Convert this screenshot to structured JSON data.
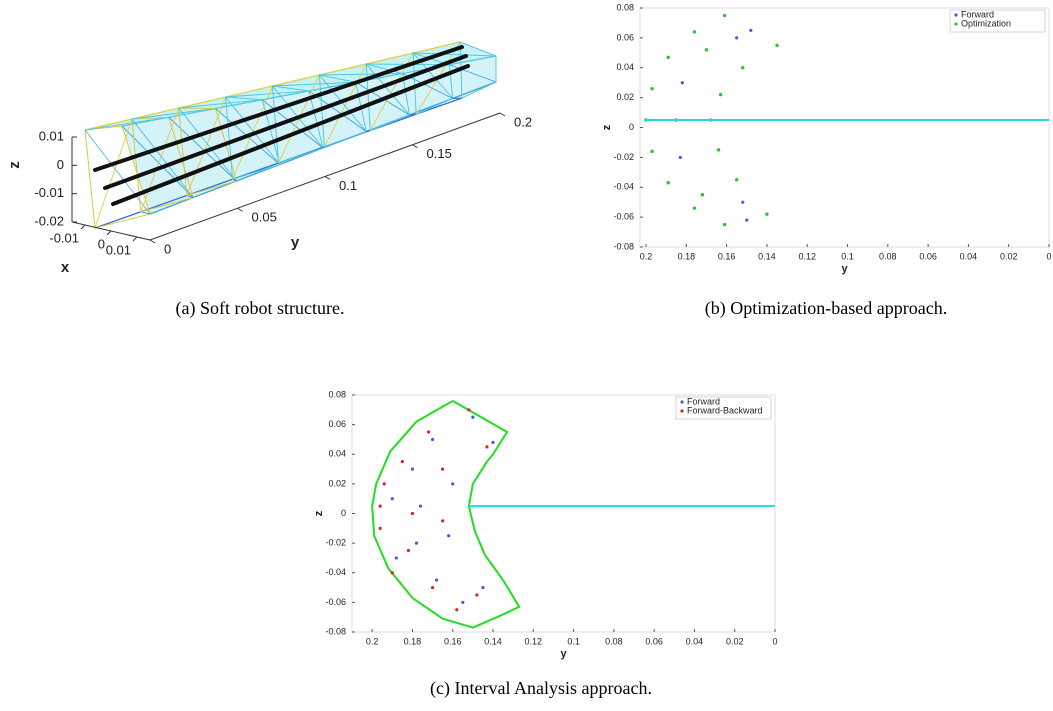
{
  "chart_data": [
    {
      "type": "wireframe3d",
      "caption": "(a) Soft robot structure.",
      "xlabel": "x",
      "ylabel": "y",
      "zlabel": "z",
      "xlim": [
        -0.015,
        0.015
      ],
      "ylim": [
        0,
        0.2
      ],
      "zlim": [
        -0.02,
        0.01
      ],
      "xticks": [
        -0.01,
        0,
        0.01
      ],
      "yticks": [
        0,
        0.05,
        0.1,
        0.15,
        0.2
      ],
      "zticks": [
        -0.02,
        -0.01,
        0,
        0.01
      ]
    },
    {
      "type": "scatter",
      "caption": "(b) Optimization-based approach.",
      "xlabel": "y",
      "ylabel": "z",
      "xlim": [
        0.203,
        0
      ],
      "ylim": [
        -0.08,
        0.08
      ],
      "xticks": [
        0.2,
        0.18,
        0.16,
        0.14,
        0.12,
        0.1,
        0.08,
        0.06,
        0.04,
        0.02,
        0
      ],
      "yticks": [
        0.08,
        0.06,
        0.04,
        0.02,
        0,
        -0.02,
        -0.04,
        -0.06,
        -0.08
      ],
      "legend": "upper right",
      "series": [
        {
          "name": "Forward",
          "color": "#4a5ad8",
          "x": [
            0.161,
            0.176,
            0.189,
            0.197,
            0.2,
            0.197,
            0.189,
            0.176,
            0.161,
            0.135,
            0.152,
            0.163,
            0.168,
            0.164,
            0.155,
            0.14,
            0.15,
            0.148,
            0.185,
            0.182,
            0.17,
            0.183,
            0.172,
            0.155,
            0.152
          ],
          "values": [
            -0.065,
            -0.054,
            -0.037,
            -0.016,
            0.005,
            0.026,
            0.047,
            0.064,
            0.075,
            0.055,
            0.04,
            0.022,
            0.005,
            -0.015,
            -0.035,
            -0.058,
            -0.062,
            0.065,
            0.005,
            0.03,
            0.052,
            -0.02,
            -0.045,
            0.06,
            -0.05
          ]
        },
        {
          "name": "Optimization",
          "color": "#22cc22",
          "x": [
            0.161,
            0.176,
            0.189,
            0.197,
            0.2,
            0.197,
            0.189,
            0.176,
            0.161,
            0.135,
            0.152,
            0.163,
            0.168,
            0.164,
            0.155,
            0.14,
            0.185,
            0.17,
            0.172
          ],
          "values": [
            -0.065,
            -0.054,
            -0.037,
            -0.016,
            0.005,
            0.026,
            0.047,
            0.064,
            0.075,
            0.055,
            0.04,
            0.022,
            0.005,
            -0.015,
            -0.035,
            -0.058,
            0.005,
            0.052,
            -0.045
          ]
        },
        {
          "style": "line",
          "color": "#22d8e8",
          "x": [
            0.2,
            0
          ],
          "values": [
            0.005,
            0.005
          ]
        }
      ]
    },
    {
      "type": "scatter",
      "caption": "(c) Interval Analysis approach.",
      "xlabel": "y",
      "ylabel": "z",
      "xlim": [
        0.21,
        0
      ],
      "ylim": [
        -0.08,
        0.08
      ],
      "xticks": [
        0.2,
        0.18,
        0.16,
        0.14,
        0.12,
        0.1,
        0.08,
        0.06,
        0.04,
        0.02,
        0
      ],
      "yticks": [
        0.08,
        0.06,
        0.04,
        0.02,
        0,
        -0.02,
        -0.04,
        -0.06,
        -0.08
      ],
      "legend": "upper right",
      "series": [
        {
          "style": "line",
          "color": "#22dd22",
          "x": [
            0.16,
            0.178,
            0.191,
            0.198,
            0.2,
            0.199,
            0.192,
            0.18,
            0.165,
            0.15,
            0.138,
            0.127,
            0.135,
            0.144,
            0.149,
            0.152,
            0.15,
            0.143,
            0.14,
            0.133,
            0.16
          ],
          "values": [
            0.076,
            0.062,
            0.042,
            0.02,
            0.005,
            -0.015,
            -0.037,
            -0.057,
            -0.071,
            -0.077,
            -0.07,
            -0.063,
            -0.045,
            -0.028,
            -0.012,
            0.005,
            0.02,
            0.035,
            0.04,
            0.055,
            0.076
          ]
        },
        {
          "name": "Forward",
          "color": "#4a5ad8",
          "x": [
            0.18,
            0.17,
            0.176,
            0.178,
            0.168,
            0.155,
            0.15,
            0.19,
            0.188,
            0.16,
            0.162,
            0.145,
            0.14
          ],
          "values": [
            0.03,
            0.05,
            0.005,
            -0.02,
            -0.045,
            -0.06,
            0.065,
            0.01,
            -0.03,
            0.02,
            -0.015,
            -0.05,
            0.048
          ]
        },
        {
          "name": "Forward-Backward",
          "color": "#dd2222",
          "x": [
            0.185,
            0.172,
            0.18,
            0.182,
            0.17,
            0.158,
            0.152,
            0.194,
            0.19,
            0.165,
            0.165,
            0.148,
            0.143,
            0.196,
            0.196
          ],
          "values": [
            0.035,
            0.055,
            0.0,
            -0.025,
            -0.05,
            -0.065,
            0.07,
            0.02,
            -0.04,
            0.03,
            -0.005,
            -0.055,
            0.045,
            0.005,
            -0.01
          ]
        },
        {
          "style": "line",
          "color": "#22d8e8",
          "x": [
            0.152,
            0
          ],
          "values": [
            0.005,
            0.005
          ]
        }
      ]
    }
  ]
}
